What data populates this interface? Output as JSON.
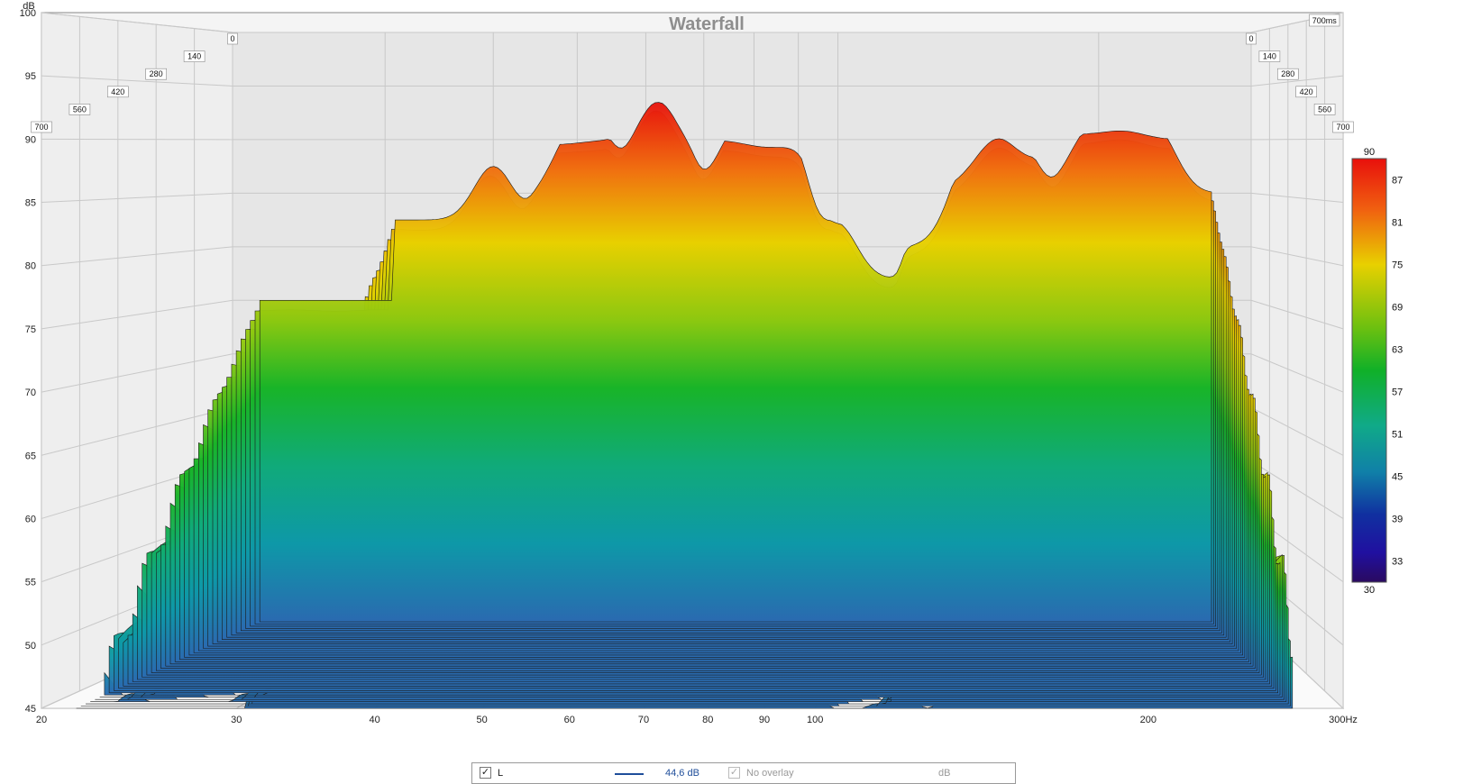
{
  "chart_data": {
    "type": "waterfall",
    "title": "Waterfall",
    "xlabel": "Hz",
    "ylabel": "dB",
    "x_scale": "log",
    "xlim": [
      20,
      300
    ],
    "ylim": [
      45,
      100
    ],
    "x_ticks": [
      "20",
      "30",
      "40",
      "50",
      "60",
      "70",
      "80",
      "90",
      "100",
      "200",
      "300Hz"
    ],
    "y_ticks": [
      "100",
      "95",
      "90",
      "85",
      "80",
      "75",
      "70",
      "65",
      "60",
      "55",
      "50",
      "45"
    ],
    "y_unit_label": "dB",
    "time_ticks": [
      "0",
      "140",
      "280",
      "420",
      "560",
      "700"
    ],
    "time_end_label": "700ms",
    "time_range_ms": [
      0,
      700
    ],
    "colorbar": {
      "min": 30,
      "max": 90,
      "ticks": [
        "90",
        "87",
        "81",
        "75",
        "69",
        "63",
        "57",
        "51",
        "45",
        "39",
        "33",
        "30"
      ]
    },
    "colors": {
      "high": "#e81a10",
      "orange": "#f08a10",
      "yellow": "#dcd800",
      "green": "#18b428",
      "teal": "#10a89a",
      "blue": "#1a4aa8",
      "low": "#2a0a70"
    },
    "front_slice_peaks": [
      {
        "freq": 40,
        "db": 87.5
      },
      {
        "freq": 49,
        "db": 89.5
      },
      {
        "freq": 53,
        "db": 90
      },
      {
        "freq": 62,
        "db": 93.5
      },
      {
        "freq": 76,
        "db": 90
      },
      {
        "freq": 82,
        "db": 89
      },
      {
        "freq": 87,
        "db": 89.5
      },
      {
        "freq": 100,
        "db": 82
      },
      {
        "freq": 140,
        "db": 85
      },
      {
        "freq": 150,
        "db": 92
      },
      {
        "freq": 165,
        "db": 88
      },
      {
        "freq": 195,
        "db": 90.5
      },
      {
        "freq": 215,
        "db": 91
      },
      {
        "freq": 235,
        "db": 90
      }
    ]
  },
  "legend": {
    "series_label": "L",
    "series_value": "44,6 dB",
    "overlay_label": "No overlay",
    "overlay_unit": "dB",
    "series_checked": "✓",
    "overlay_checked": "✓",
    "line_color": "#1f4e9a"
  }
}
